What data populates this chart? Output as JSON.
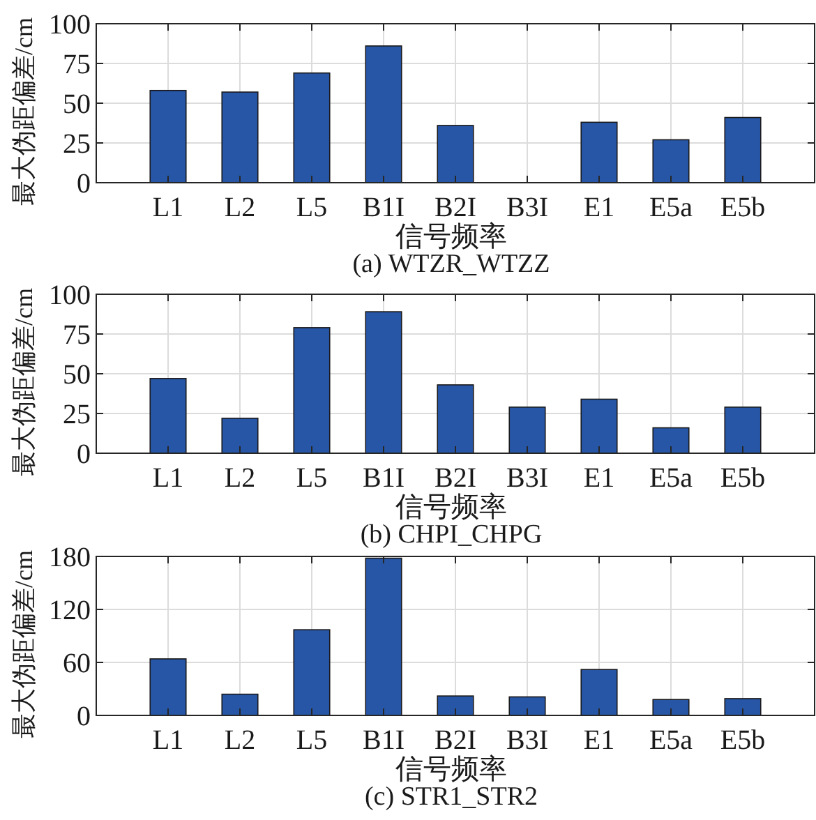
{
  "chart_data": [
    {
      "type": "bar",
      "title": "(a) WTZR_WTZZ",
      "xlabel": "信号频率",
      "ylabel": "最大伪距偏差/cm",
      "categories": [
        "L1",
        "L2",
        "L5",
        "B1I",
        "B2I",
        "B3I",
        "E1",
        "E5a",
        "E5b"
      ],
      "values": [
        58,
        57,
        69,
        86,
        36,
        null,
        38,
        27,
        41
      ],
      "color": "#2756a6",
      "ylim": [
        0,
        100
      ],
      "yticks": [
        0,
        25,
        50,
        75,
        100
      ],
      "grid": true
    },
    {
      "type": "bar",
      "title": "(b) CHPI_CHPG",
      "xlabel": "信号频率",
      "ylabel": "最大伪距偏差/cm",
      "categories": [
        "L1",
        "L2",
        "L5",
        "B1I",
        "B2I",
        "B3I",
        "E1",
        "E5a",
        "E5b"
      ],
      "values": [
        47,
        22,
        79,
        89,
        43,
        29,
        34,
        16,
        29
      ],
      "color": "#2756a6",
      "ylim": [
        0,
        100
      ],
      "yticks": [
        0,
        25,
        50,
        75,
        100
      ],
      "grid": true
    },
    {
      "type": "bar",
      "title": "(c) STR1_STR2",
      "xlabel": "信号频率",
      "ylabel": "最大伪距偏差/cm",
      "categories": [
        "L1",
        "L2",
        "L5",
        "B1I",
        "B2I",
        "B3I",
        "E1",
        "E5a",
        "E5b"
      ],
      "values": [
        64,
        24,
        97,
        178,
        22,
        21,
        52,
        18,
        19
      ],
      "color": "#2756a6",
      "ylim": [
        0,
        180
      ],
      "yticks": [
        0,
        60,
        120,
        180
      ],
      "grid": true
    }
  ]
}
